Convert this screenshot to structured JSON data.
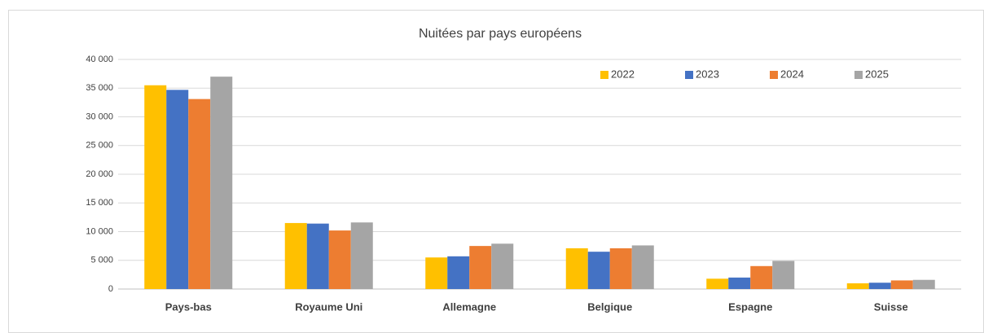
{
  "chart_data": {
    "type": "bar",
    "title": "Nuitées par pays européens",
    "categories": [
      "Pays-bas",
      "Royaume Uni",
      "Allemagne",
      "Belgique",
      "Espagne",
      "Suisse"
    ],
    "series": [
      {
        "name": "2022",
        "color": "#ffc000",
        "values": [
          35500,
          11500,
          5500,
          7100,
          1800,
          1000
        ]
      },
      {
        "name": "2023",
        "color": "#4472c4",
        "values": [
          34700,
          11400,
          5700,
          6500,
          2000,
          1100
        ]
      },
      {
        "name": "2024",
        "color": "#ed7d31",
        "values": [
          33100,
          10200,
          7500,
          7100,
          4000,
          1500
        ]
      },
      {
        "name": "2025",
        "color": "#a5a5a5",
        "values": [
          37000,
          11600,
          7900,
          7600,
          4900,
          1600
        ]
      }
    ],
    "ylim": [
      0,
      40000
    ],
    "yticks": [
      0,
      {
        "value": 5000,
        "label": "5 000"
      },
      {
        "value": 10000,
        "label": "10 000"
      },
      {
        "value": 15000,
        "label": "15 000"
      },
      {
        "value": 20000,
        "label": "20 000"
      },
      {
        "value": 25000,
        "label": "25 000"
      },
      {
        "value": 30000,
        "label": "30 000"
      },
      {
        "value": 35000,
        "label": "35 000"
      },
      {
        "value": 40000,
        "label": "40 000"
      }
    ],
    "grid": true,
    "legend": "top-right"
  }
}
